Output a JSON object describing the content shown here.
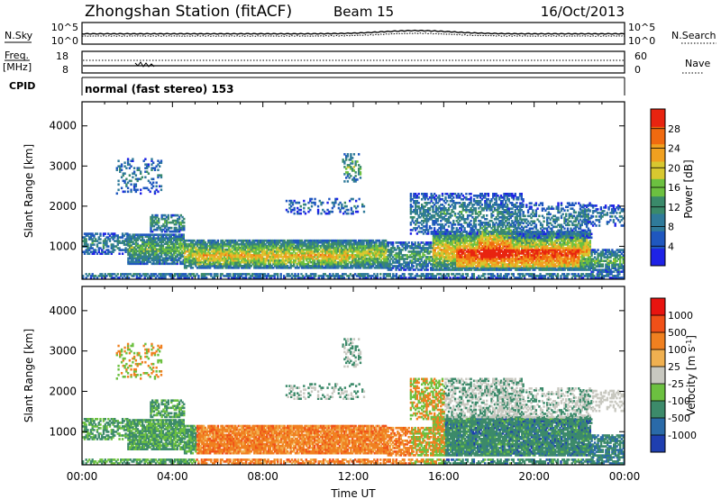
{
  "header": {
    "station": "Zhongshan Station (fitACF)",
    "beam": "Beam 15",
    "date": "16/Oct/2013"
  },
  "panels": {
    "nsky": {
      "label": "N.Sky",
      "top_tick": "10^5",
      "bottom_tick": "10^0"
    },
    "nsearch": {
      "label": "N.Search",
      "top_tick": "10^5",
      "bottom_tick": "10^0"
    },
    "freq": {
      "label_line1": "Freq.",
      "label_line2": "[MHz]",
      "top_tick": "18",
      "bottom_tick": "8"
    },
    "nave": {
      "label": "Nave",
      "top_tick": "60",
      "bottom_tick": "0"
    },
    "cpid": {
      "label": "CPID",
      "text": "normal (fast stereo) 153"
    }
  },
  "chart_data": [
    {
      "type": "heatmap",
      "title": "",
      "xlabel": "",
      "ylabel": "Slant Range [km]",
      "xlim": [
        0,
        24
      ],
      "ylim": [
        180,
        4600
      ],
      "y_ticks": [
        "1000",
        "2000",
        "3000",
        "4000"
      ],
      "y_tick_values": [
        1000,
        2000,
        3000,
        4000
      ],
      "colorbar": {
        "label": "Power [dB]",
        "ticks": [
          "4",
          "8",
          "12",
          "16",
          "20",
          "24",
          "28"
        ],
        "tick_values": [
          4,
          8,
          12,
          16,
          20,
          24,
          28
        ],
        "range": [
          0,
          32
        ],
        "colors": [
          "#1e22e6",
          "#1f57bf",
          "#2f7a9a",
          "#3a8a6a",
          "#6cc040",
          "#d8c830",
          "#f0a020",
          "#f06a10",
          "#e82410"
        ]
      }
    },
    {
      "type": "heatmap",
      "title": "",
      "xlabel": "Time UT",
      "ylabel": "Slant Range [km]",
      "xlim": [
        0,
        24
      ],
      "ylim": [
        180,
        4600
      ],
      "x_ticks": [
        "00:00",
        "04:00",
        "08:00",
        "12:00",
        "16:00",
        "20:00",
        "00:00"
      ],
      "x_tick_values": [
        0,
        4,
        8,
        12,
        16,
        20,
        24
      ],
      "y_ticks": [
        "1000",
        "2000",
        "3000",
        "4000"
      ],
      "y_tick_values": [
        1000,
        2000,
        3000,
        4000
      ],
      "colorbar": {
        "label": "Velocity [m s^-1]",
        "ticks": [
          "1000",
          "500",
          "100",
          "25",
          "-25",
          "-100",
          "-500",
          "-1000"
        ],
        "colors": [
          "#1f3fb0",
          "#2a6aa8",
          "#3c8a6a",
          "#6cc040",
          "#c8c8c0",
          "#f0b050",
          "#f08020",
          "#f05018",
          "#e81410"
        ]
      }
    }
  ],
  "colors": {
    "frame": "#000000",
    "nsky_trace": "#000000",
    "background": "#ffffff"
  }
}
